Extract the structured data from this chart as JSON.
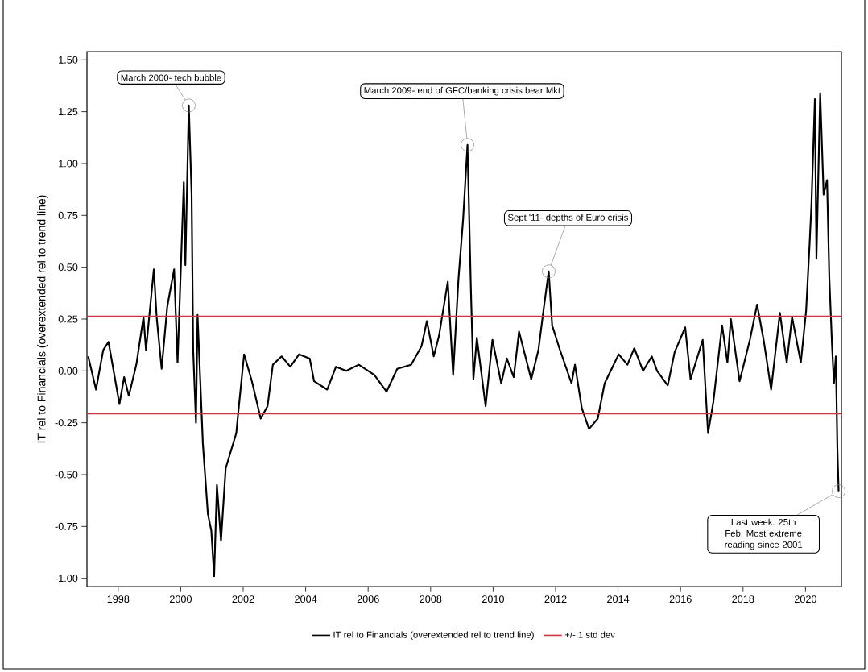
{
  "chart_data": {
    "type": "line",
    "ylabel": "IT rel to Financials (overextended rel to trend line)",
    "x": [
      1997.04,
      1997.29,
      1997.52,
      1997.69,
      1998.04,
      1998.19,
      1998.34,
      1998.58,
      1998.81,
      1998.89,
      1999.14,
      1999.23,
      1999.39,
      1999.57,
      1999.79,
      1999.9,
      2000.1,
      2000.15,
      2000.26,
      2000.35,
      2000.4,
      2000.49,
      2000.54,
      2000.71,
      2000.87,
      2000.98,
      2001.07,
      2001.16,
      2001.29,
      2001.44,
      2001.78,
      2001.83,
      2002.03,
      2002.28,
      2002.56,
      2002.78,
      2002.95,
      2003.23,
      2003.51,
      2003.79,
      2004.13,
      2004.27,
      2004.69,
      2004.97,
      2005.3,
      2005.7,
      2006.2,
      2006.59,
      2006.93,
      2007.38,
      2007.71,
      2007.88,
      2008.1,
      2008.27,
      2008.55,
      2008.72,
      2008.89,
      2009.04,
      2009.18,
      2009.29,
      2009.37,
      2009.48,
      2009.76,
      2009.98,
      2010.26,
      2010.44,
      2010.66,
      2010.83,
      2011.22,
      2011.45,
      2011.62,
      2011.78,
      2011.89,
      2012.12,
      2012.51,
      2012.62,
      2012.84,
      2013.07,
      2013.35,
      2013.57,
      2014.02,
      2014.3,
      2014.52,
      2014.8,
      2015.08,
      2015.25,
      2015.59,
      2015.81,
      2016.15,
      2016.32,
      2016.71,
      2016.88,
      2017.05,
      2017.33,
      2017.5,
      2017.61,
      2017.89,
      2018.22,
      2018.45,
      2018.67,
      2018.9,
      2019.18,
      2019.4,
      2019.57,
      2019.85,
      2020.02,
      2020.13,
      2020.19,
      2020.3,
      2020.35,
      2020.47,
      2020.58,
      2020.69,
      2020.76,
      2020.85,
      2020.91,
      2020.97,
      2021.02,
      2021.06
    ],
    "series": [
      {
        "name": "IT rel to Financials (overextended rel to trend line)",
        "color": "#000000",
        "values": [
          0.07,
          -0.09,
          0.1,
          0.14,
          -0.16,
          -0.03,
          -0.12,
          0.03,
          0.26,
          0.1,
          0.49,
          0.26,
          0.01,
          0.31,
          0.49,
          0.04,
          0.91,
          0.51,
          1.28,
          0.85,
          0.1,
          -0.25,
          0.27,
          -0.35,
          -0.69,
          -0.77,
          -0.99,
          -0.55,
          -0.82,
          -0.47,
          -0.3,
          -0.22,
          0.08,
          -0.05,
          -0.23,
          -0.17,
          0.03,
          0.07,
          0.02,
          0.08,
          0.06,
          -0.05,
          -0.09,
          0.02,
          0.0,
          0.03,
          -0.02,
          -0.1,
          0.01,
          0.03,
          0.12,
          0.24,
          0.07,
          0.17,
          0.43,
          -0.02,
          0.44,
          0.73,
          1.09,
          0.39,
          -0.04,
          0.16,
          -0.17,
          0.15,
          -0.06,
          0.06,
          -0.03,
          0.19,
          -0.04,
          0.1,
          0.3,
          0.48,
          0.22,
          0.11,
          -0.06,
          0.03,
          -0.18,
          -0.28,
          -0.23,
          -0.06,
          0.08,
          0.03,
          0.11,
          0.0,
          0.07,
          0.0,
          -0.07,
          0.09,
          0.21,
          -0.04,
          0.15,
          -0.3,
          -0.15,
          0.22,
          0.04,
          0.25,
          -0.05,
          0.15,
          0.32,
          0.14,
          -0.09,
          0.28,
          0.04,
          0.26,
          0.04,
          0.29,
          0.61,
          0.8,
          1.31,
          0.54,
          1.34,
          0.85,
          0.92,
          0.46,
          0.12,
          -0.06,
          0.07,
          -0.37,
          -0.58
        ]
      }
    ],
    "ref_lines": [
      {
        "axis": "y",
        "value": 0.264,
        "label": "+/- 1 std dev",
        "color": "#cc3344"
      },
      {
        "axis": "y",
        "value": -0.207,
        "color": "#cc3344"
      }
    ],
    "annotations": [
      {
        "text": "March 2000- tech bubble",
        "x": 2000.26,
        "y": 1.28
      },
      {
        "text": "March 2009- end of GFC/banking crisis bear Mkt",
        "x": 2009.18,
        "y": 1.09
      },
      {
        "text": "Sept '11- depths of Euro crisis",
        "x": 2011.78,
        "y": 0.48
      },
      {
        "text": "Last week: 25th Feb: Most extreme reading since 2001",
        "x": 2021.06,
        "y": -0.58
      }
    ],
    "xlim": [
      1997.0,
      2021.15
    ],
    "ylim": [
      -1.04,
      1.54
    ],
    "xticks": [
      1998,
      2000,
      2002,
      2004,
      2006,
      2008,
      2010,
      2012,
      2014,
      2016,
      2018,
      2020
    ],
    "yticks": [
      {
        "value": -1.0,
        "label": "-1.00"
      },
      {
        "value": -0.75,
        "label": "-0.75"
      },
      {
        "value": -0.5,
        "label": "-0.50"
      },
      {
        "value": -0.25,
        "label": "-0.25"
      },
      {
        "value": 0.0,
        "label": "0.00"
      },
      {
        "value": 0.25,
        "label": "0.25"
      },
      {
        "value": 0.5,
        "label": "0.50"
      },
      {
        "value": 0.75,
        "label": "0.75"
      },
      {
        "value": 1.0,
        "label": "1.00"
      },
      {
        "value": 1.25,
        "label": "1.25"
      },
      {
        "value": 1.5,
        "label": "1.50"
      }
    ],
    "grid": false,
    "legend": "bottom",
    "marker": "none",
    "line_style": "solid"
  }
}
